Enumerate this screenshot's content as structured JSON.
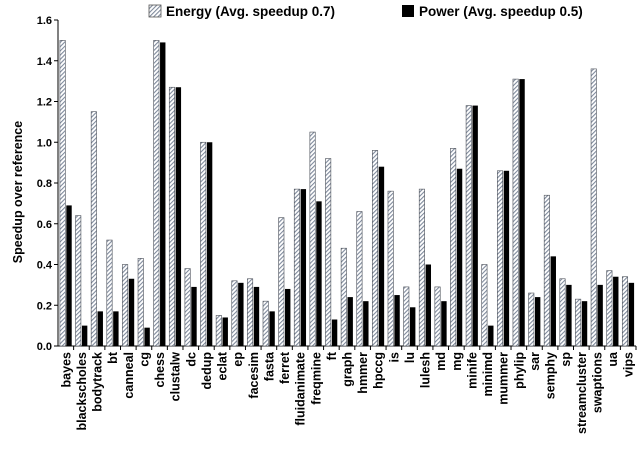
{
  "chart_data": {
    "type": "bar",
    "xlabel": "",
    "ylabel": "Speedup over reference",
    "ylim": [
      0,
      1.6
    ],
    "yticks": [
      "0.0",
      "0.2",
      "0.4",
      "0.6",
      "0.8",
      "1.0",
      "1.2",
      "1.4",
      "1.6"
    ],
    "grid": false,
    "legend_position": "top",
    "categories": [
      "bayes",
      "blackscholes",
      "bodytrack",
      "bt",
      "canneal",
      "cg",
      "chess",
      "clustalw",
      "dc",
      "dedup",
      "eclat",
      "ep",
      "facesim",
      "fasta",
      "ferret",
      "fluidanimate",
      "freqmine",
      "ft",
      "graph",
      "hmmer",
      "hpccg",
      "is",
      "lu",
      "lulesh",
      "md",
      "mg",
      "minife",
      "minimd",
      "mummer",
      "phylip",
      "sar",
      "semphy",
      "sp",
      "streamcluster",
      "swaptions",
      "ua",
      "vips"
    ],
    "series": [
      {
        "name": "Energy (Avg. speedup 0.7)",
        "color": "#8a96a8",
        "pattern": "diagonal-hatch",
        "values": [
          1.5,
          0.64,
          1.15,
          0.52,
          0.4,
          0.43,
          1.5,
          1.27,
          0.38,
          1.0,
          0.15,
          0.32,
          0.33,
          0.22,
          0.63,
          0.77,
          1.05,
          0.92,
          0.48,
          0.66,
          0.96,
          0.76,
          0.29,
          0.77,
          0.29,
          0.97,
          1.18,
          0.4,
          0.86,
          1.31,
          0.26,
          0.74,
          0.33,
          0.23,
          1.36,
          0.37,
          0.34
        ]
      },
      {
        "name": "Power (Avg. speedup 0.5)",
        "color": "#000000",
        "pattern": "solid",
        "values": [
          0.69,
          0.1,
          0.17,
          0.17,
          0.33,
          0.09,
          1.49,
          1.27,
          0.29,
          1.0,
          0.14,
          0.31,
          0.29,
          0.17,
          0.28,
          0.77,
          0.71,
          0.13,
          0.24,
          0.22,
          0.88,
          0.25,
          0.19,
          0.4,
          0.22,
          0.87,
          1.18,
          0.1,
          0.86,
          1.31,
          0.24,
          0.44,
          0.3,
          0.22,
          0.3,
          0.34,
          0.31
        ]
      }
    ]
  }
}
